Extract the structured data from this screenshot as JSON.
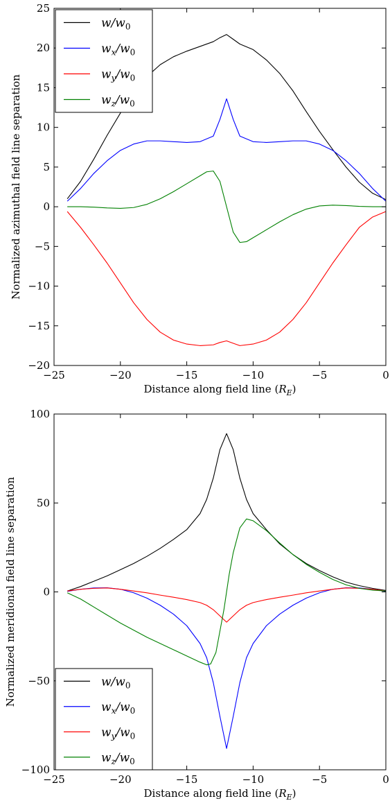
{
  "chart_data": [
    {
      "type": "line",
      "xlabel": "Distance along field line (R_E)",
      "xlabel_main": "Distance along field line (",
      "xlabel_var": "R",
      "xlabel_sub": "E",
      "xlabel_close": ")",
      "ylabel": "Normalized azimuthal field line separation",
      "xlim": [
        -25,
        0
      ],
      "ylim": [
        -20,
        25
      ],
      "xticks": [
        -25,
        -20,
        -15,
        -10,
        -5,
        0
      ],
      "xtick_labels": [
        "−25",
        "−20",
        "−15",
        "−10",
        "−5",
        "0"
      ],
      "yticks": [
        -20,
        -15,
        -10,
        -5,
        0,
        5,
        10,
        15,
        20,
        25
      ],
      "ytick_labels": [
        "−20",
        "−15",
        "−10",
        "−5",
        "0",
        "5",
        "10",
        "15",
        "20",
        "25"
      ],
      "legend_position": "top-left",
      "grid": false,
      "series": [
        {
          "name": "w/w0",
          "name_parts": [
            "w",
            "/",
            "w",
            "0"
          ],
          "color": "#000000",
          "x": [
            -24,
            -23,
            -22,
            -21,
            -20,
            -19,
            -18,
            -17,
            -16,
            -15,
            -14,
            -13,
            -12.5,
            -12,
            -11.5,
            -11,
            -10,
            -9,
            -8,
            -7,
            -6,
            -5,
            -4,
            -3,
            -2,
            -1,
            0
          ],
          "y": [
            1.0,
            3.2,
            6.0,
            9.0,
            11.8,
            14.3,
            16.4,
            17.9,
            18.9,
            19.6,
            20.2,
            20.8,
            21.3,
            21.7,
            21.1,
            20.5,
            19.8,
            18.5,
            16.8,
            14.6,
            12.0,
            9.5,
            7.2,
            5.0,
            3.1,
            1.7,
            0.9
          ]
        },
        {
          "name": "wx/w0",
          "name_parts": [
            "w",
            "x",
            "/",
            "w",
            "0"
          ],
          "color": "#0000ff",
          "x": [
            -24,
            -23,
            -22,
            -21,
            -20,
            -19,
            -18,
            -17,
            -16,
            -15,
            -14,
            -13,
            -12.5,
            -12,
            -11.5,
            -11,
            -10,
            -9,
            -8,
            -7,
            -6,
            -5,
            -4,
            -3,
            -2,
            -1,
            0
          ],
          "y": [
            0.7,
            2.3,
            4.2,
            5.8,
            7.1,
            7.9,
            8.3,
            8.3,
            8.2,
            8.1,
            8.2,
            8.9,
            11.0,
            13.6,
            11.0,
            8.9,
            8.2,
            8.1,
            8.2,
            8.3,
            8.3,
            7.9,
            7.1,
            5.8,
            4.2,
            2.3,
            0.7
          ]
        },
        {
          "name": "wy/w0",
          "name_parts": [
            "w",
            "y",
            "/",
            "w",
            "0"
          ],
          "color": "#ff0000",
          "x": [
            -24,
            -23,
            -22,
            -21,
            -20,
            -19,
            -18,
            -17,
            -16,
            -15,
            -14,
            -13,
            -12.5,
            -12,
            -11.5,
            -11,
            -10,
            -9,
            -8,
            -7,
            -6,
            -5,
            -4,
            -3,
            -2,
            -1,
            0
          ],
          "y": [
            -0.6,
            -2.6,
            -4.8,
            -7.1,
            -9.6,
            -12.1,
            -14.2,
            -15.8,
            -16.8,
            -17.3,
            -17.5,
            -17.4,
            -17.1,
            -16.9,
            -17.2,
            -17.5,
            -17.3,
            -16.8,
            -15.8,
            -14.2,
            -12.1,
            -9.6,
            -7.1,
            -4.8,
            -2.6,
            -1.3,
            -0.6
          ]
        },
        {
          "name": "wz/w0",
          "name_parts": [
            "w",
            "z",
            "/",
            "w",
            "0"
          ],
          "color": "#008000",
          "x": [
            -24,
            -23,
            -22,
            -21,
            -20,
            -19,
            -18,
            -17,
            -16,
            -15,
            -14,
            -13.5,
            -13,
            -12.5,
            -12,
            -11.5,
            -11,
            -10.5,
            -10,
            -9,
            -8,
            -7,
            -6,
            -5,
            -4,
            -3,
            -2,
            -1,
            0
          ],
          "y": [
            0.0,
            0.0,
            -0.05,
            -0.15,
            -0.2,
            -0.1,
            0.3,
            1.0,
            1.9,
            2.9,
            3.9,
            4.4,
            4.5,
            3.2,
            0.0,
            -3.2,
            -4.5,
            -4.4,
            -3.9,
            -2.9,
            -1.9,
            -1.0,
            -0.3,
            0.1,
            0.2,
            0.15,
            0.05,
            0.0,
            0.0
          ]
        }
      ]
    },
    {
      "type": "line",
      "xlabel": "Distance along field line (R_E)",
      "xlabel_main": "Distance along field line (",
      "xlabel_var": "R",
      "xlabel_sub": "E",
      "xlabel_close": ")",
      "ylabel": "Normalized meridional field line separation",
      "xlim": [
        -25,
        0
      ],
      "ylim": [
        -100,
        100
      ],
      "xticks": [
        -25,
        -20,
        -15,
        -10,
        -5,
        0
      ],
      "xtick_labels": [
        "−25",
        "−20",
        "−15",
        "−10",
        "−5",
        "0"
      ],
      "yticks": [
        -100,
        -50,
        0,
        50,
        100
      ],
      "ytick_labels": [
        "−100",
        "−50",
        "0",
        "50",
        "100"
      ],
      "legend_position": "bottom-left",
      "grid": false,
      "series": [
        {
          "name": "w/w0",
          "name_parts": [
            "w",
            "/",
            "w",
            "0"
          ],
          "color": "#000000",
          "x": [
            -24,
            -23,
            -22,
            -21,
            -20,
            -19,
            -18,
            -17,
            -16,
            -15,
            -14,
            -13.5,
            -13,
            -12.5,
            -12,
            -11.5,
            -11,
            -10.5,
            -10,
            -9,
            -8,
            -7,
            -6,
            -5,
            -4,
            -3,
            -2,
            -1,
            0
          ],
          "y": [
            0.5,
            3.0,
            6.0,
            9.0,
            12.5,
            16.0,
            20.0,
            24.5,
            29.5,
            35.0,
            44.0,
            52.0,
            64.0,
            80.0,
            89.0,
            80.0,
            64.0,
            52.0,
            44.0,
            35.0,
            27.0,
            21.0,
            16.0,
            12.0,
            8.5,
            5.5,
            3.5,
            2.0,
            0.8
          ]
        },
        {
          "name": "wx/w0",
          "name_parts": [
            "w",
            "x",
            "/",
            "w",
            "0"
          ],
          "color": "#0000ff",
          "x": [
            -24,
            -23,
            -22,
            -21,
            -20,
            -19,
            -18,
            -17,
            -16,
            -15,
            -14,
            -13.5,
            -13,
            -12.5,
            -12,
            -11.5,
            -11,
            -10.5,
            -10,
            -9,
            -8,
            -7,
            -6,
            -5,
            -4,
            -3,
            -2,
            -1,
            0
          ],
          "y": [
            0.3,
            1.5,
            2.2,
            2.3,
            1.5,
            -0.5,
            -3.5,
            -7.5,
            -12.5,
            -19.0,
            -29.0,
            -37.0,
            -51.0,
            -70.0,
            -88.0,
            -70.0,
            -51.0,
            -37.0,
            -29.0,
            -19.0,
            -12.5,
            -7.5,
            -3.5,
            -0.5,
            1.5,
            2.3,
            2.2,
            1.5,
            0.3
          ]
        },
        {
          "name": "wy/w0",
          "name_parts": [
            "w",
            "y",
            "/",
            "w",
            "0"
          ],
          "color": "#ff0000",
          "x": [
            -24,
            -23,
            -22,
            -21,
            -20,
            -19,
            -18,
            -17,
            -16,
            -15,
            -14,
            -13.5,
            -13,
            -12.5,
            -12,
            -11.5,
            -11,
            -10.5,
            -10,
            -9,
            -8,
            -7,
            -6,
            -5,
            -4,
            -3,
            -2,
            -1,
            0
          ],
          "y": [
            0.5,
            1.5,
            2.0,
            2.2,
            1.5,
            0.5,
            -0.5,
            -1.8,
            -3.0,
            -4.3,
            -6.0,
            -7.5,
            -10.0,
            -13.5,
            -17.0,
            -13.5,
            -10.0,
            -7.5,
            -6.0,
            -4.3,
            -3.0,
            -1.8,
            -0.5,
            0.5,
            1.5,
            2.2,
            2.0,
            1.5,
            0.5
          ]
        },
        {
          "name": "wz/w0",
          "name_parts": [
            "w",
            "z",
            "/",
            "w",
            "0"
          ],
          "color": "#008000",
          "x": [
            -24,
            -23,
            -22,
            -21,
            -20,
            -19,
            -18,
            -17,
            -16,
            -15,
            -14,
            -13.5,
            -13.2,
            -12.8,
            -12.5,
            -12.2,
            -12.0,
            -11.8,
            -11.5,
            -11.0,
            -10.5,
            -10,
            -9,
            -8,
            -7,
            -6,
            -5,
            -4,
            -3,
            -2,
            -1,
            0
          ],
          "y": [
            -0.5,
            -4.0,
            -8.5,
            -13.0,
            -17.5,
            -21.5,
            -25.5,
            -29.0,
            -32.5,
            -36.0,
            -39.5,
            -41.0,
            -40.5,
            -34.0,
            -22.0,
            -10.0,
            0.0,
            10.0,
            22.0,
            36.0,
            41.0,
            40.0,
            34.5,
            27.5,
            21.0,
            15.5,
            11.0,
            7.0,
            4.0,
            2.0,
            1.0,
            0.5
          ]
        }
      ]
    }
  ]
}
